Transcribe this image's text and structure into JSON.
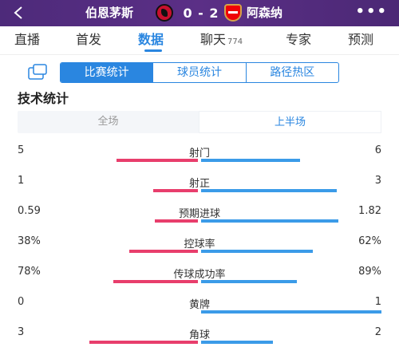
{
  "match": {
    "home_team": "伯恩茅斯",
    "away_team": "阿森纳",
    "score": "0 - 2"
  },
  "colors": {
    "accent": "#2a86e0",
    "home_bar": "#e83e6c",
    "away_bar": "#3b9be8",
    "header": "#55307f"
  },
  "tabs": [
    {
      "label": "直播"
    },
    {
      "label": "首发"
    },
    {
      "label": "数据"
    },
    {
      "label": "聊天",
      "count": "774"
    },
    {
      "label": "专家"
    },
    {
      "label": "预测"
    }
  ],
  "active_tab": "数据",
  "subtabs": [
    "比赛统计",
    "球员统计",
    "路径热区"
  ],
  "section_title": "技术统计",
  "period": [
    "全场",
    "上半场"
  ],
  "stats": [
    {
      "label": "射门",
      "home": "5",
      "away": "6",
      "home_frac": 0.45,
      "away_frac": 0.55
    },
    {
      "label": "射正",
      "home": "1",
      "away": "3",
      "home_frac": 0.25,
      "away_frac": 0.75
    },
    {
      "label": "预期进球",
      "home": "0.59",
      "away": "1.82",
      "home_frac": 0.24,
      "away_frac": 0.76
    },
    {
      "label": "控球率",
      "home": "38%",
      "away": "62%",
      "home_frac": 0.38,
      "away_frac": 0.62
    },
    {
      "label": "传球成功率",
      "home": "78%",
      "away": "89%",
      "home_frac": 0.47,
      "away_frac": 0.53
    },
    {
      "label": "黄牌",
      "home": "0",
      "away": "1",
      "home_frac": 0.0,
      "away_frac": 1.0
    },
    {
      "label": "角球",
      "home": "3",
      "away": "2",
      "home_frac": 0.6,
      "away_frac": 0.4
    }
  ]
}
